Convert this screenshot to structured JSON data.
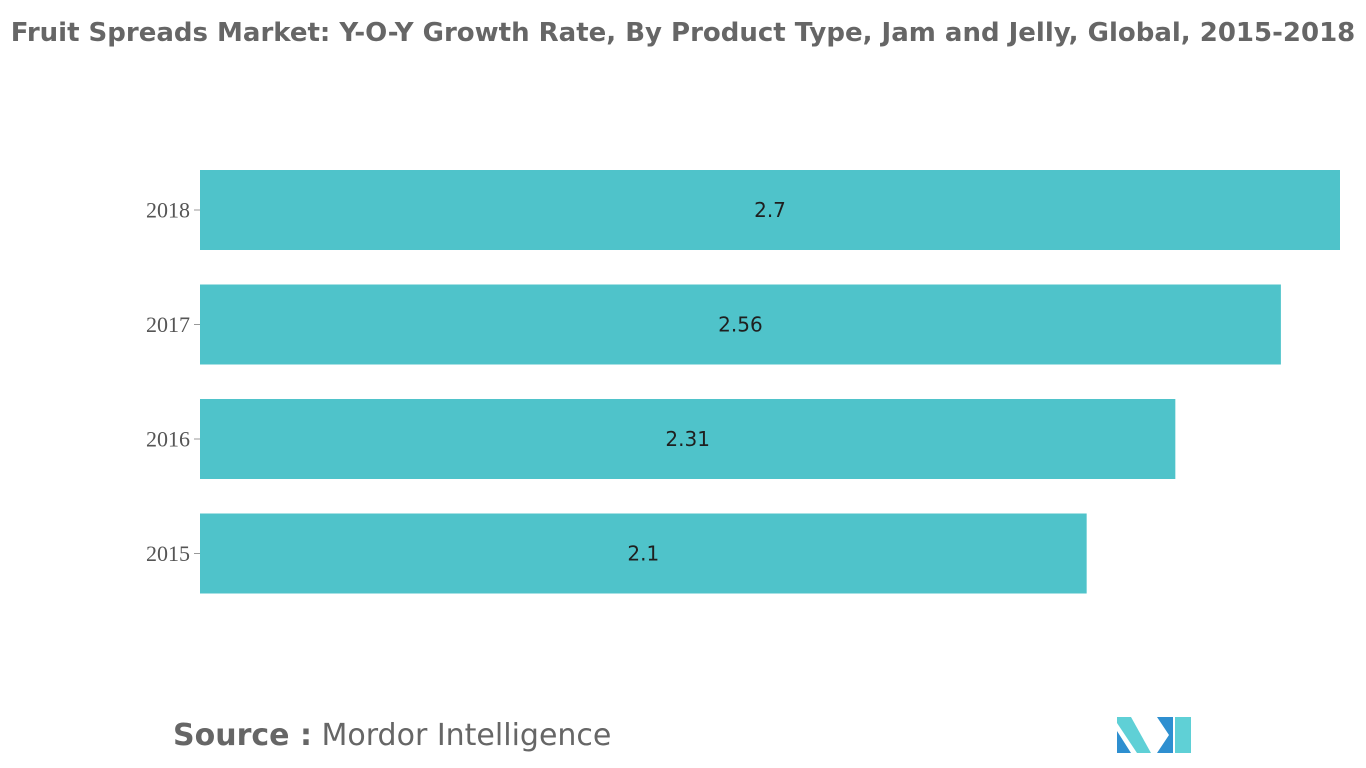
{
  "chart_data": {
    "type": "bar",
    "orientation": "horizontal",
    "title": "Fruit Spreads Market: Y-O-Y Growth Rate, By Product Type, Jam and Jelly, Global, 2015-2018",
    "categories": [
      "2018",
      "2017",
      "2016",
      "2015"
    ],
    "values": [
      2.7,
      2.56,
      2.31,
      2.1
    ],
    "data_labels": [
      "2.7",
      "2.56",
      "2.31",
      "2.1"
    ],
    "xlabel": "",
    "ylabel": "",
    "xlim": [
      0,
      2.7
    ],
    "grid": false,
    "legend": "none",
    "bar_color": "#4fc3ca"
  },
  "footer": {
    "source_label": "Source :",
    "source_name": "Mordor Intelligence",
    "logo_colors": [
      "#2e8fd0",
      "#5fd0d6",
      "#1e5f9e"
    ]
  }
}
